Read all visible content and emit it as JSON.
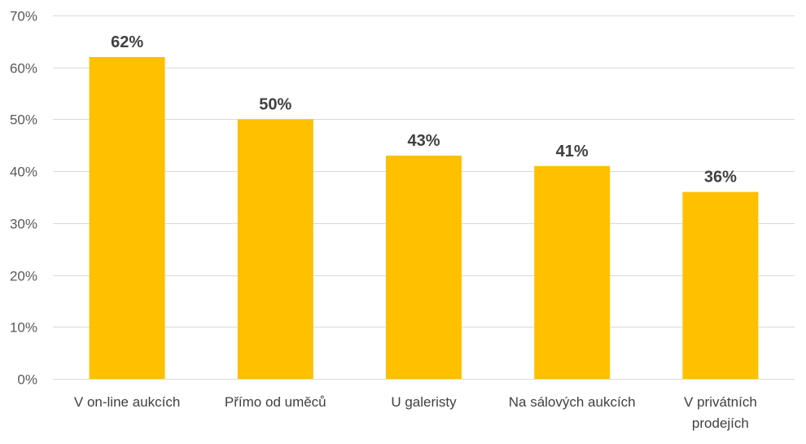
{
  "chart_data": {
    "type": "bar",
    "title": "",
    "xlabel": "",
    "ylabel": "",
    "categories": [
      [
        "V on-line aukcích"
      ],
      [
        "Přímo od uměců"
      ],
      [
        "U galeristy"
      ],
      [
        "Na sálových aukcích"
      ],
      [
        "V privátních",
        "prodejích"
      ]
    ],
    "values": [
      62,
      50,
      43,
      41,
      36
    ],
    "value_labels": [
      "62%",
      "50%",
      "43%",
      "41%",
      "36%"
    ],
    "ylim": [
      0,
      70
    ],
    "yticks": [
      0,
      10,
      20,
      30,
      40,
      50,
      60,
      70
    ],
    "ytick_labels": [
      "0%",
      "10%",
      "20%",
      "30%",
      "40%",
      "50%",
      "60%",
      "70%"
    ],
    "grid": true,
    "legend": "none",
    "colors": {
      "bar": "#FFC000",
      "grid": "#D9D9D9",
      "tick_text": "#595959",
      "label_text": "#404040"
    }
  }
}
